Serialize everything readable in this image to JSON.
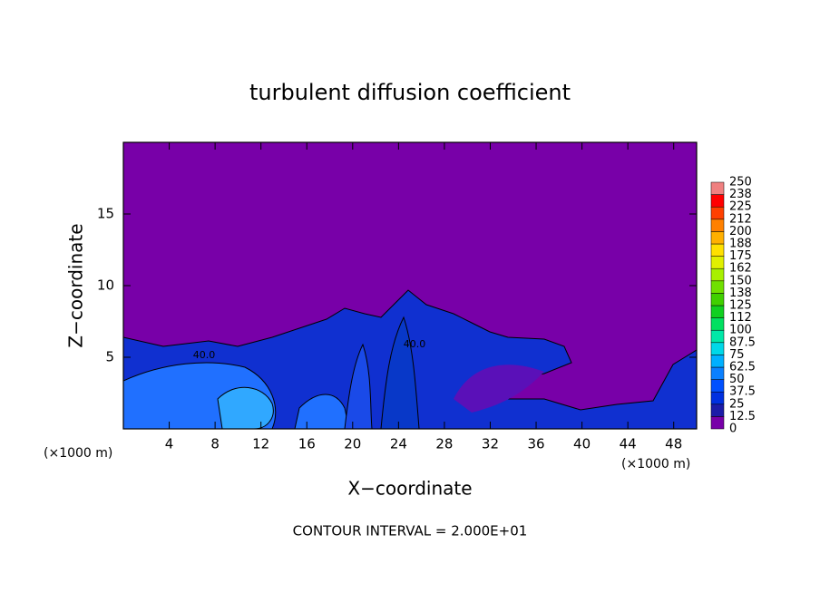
{
  "chart_data": {
    "type": "contour",
    "title": "turbulent diffusion coefficient",
    "x_label": "X−coordinate",
    "y_label": "Z−coordinate",
    "x_unit": "(×1000 m)",
    "y_unit": "(×1000 m)",
    "footer": "CONTOUR INTERVAL = 2.000E+01",
    "annotations": [
      "40.0",
      "40.0"
    ],
    "xlim": [
      0,
      50
    ],
    "ylim": [
      0,
      20
    ],
    "xticks": [
      4,
      8,
      12,
      16,
      20,
      24,
      28,
      32,
      36,
      40,
      44,
      48
    ],
    "yticks": [
      5,
      10,
      15
    ],
    "colorbar": {
      "levels": [
        0,
        12.5,
        25,
        37.5,
        50,
        62.5,
        75,
        87.5,
        100,
        112,
        125,
        138,
        150,
        162,
        175,
        188,
        200,
        212,
        225,
        238,
        250
      ],
      "colors": [
        "#7800a8",
        "#1c1ca8",
        "#0030e0",
        "#0050ff",
        "#0a80ff",
        "#00b0ff",
        "#00d8e8",
        "#00e8a8",
        "#00e060",
        "#10d020",
        "#40d000",
        "#70e000",
        "#a8f000",
        "#e0f000",
        "#ffe000",
        "#ffb000",
        "#ff8000",
        "#ff4000",
        "#ff0000",
        "#f08080"
      ]
    }
  }
}
